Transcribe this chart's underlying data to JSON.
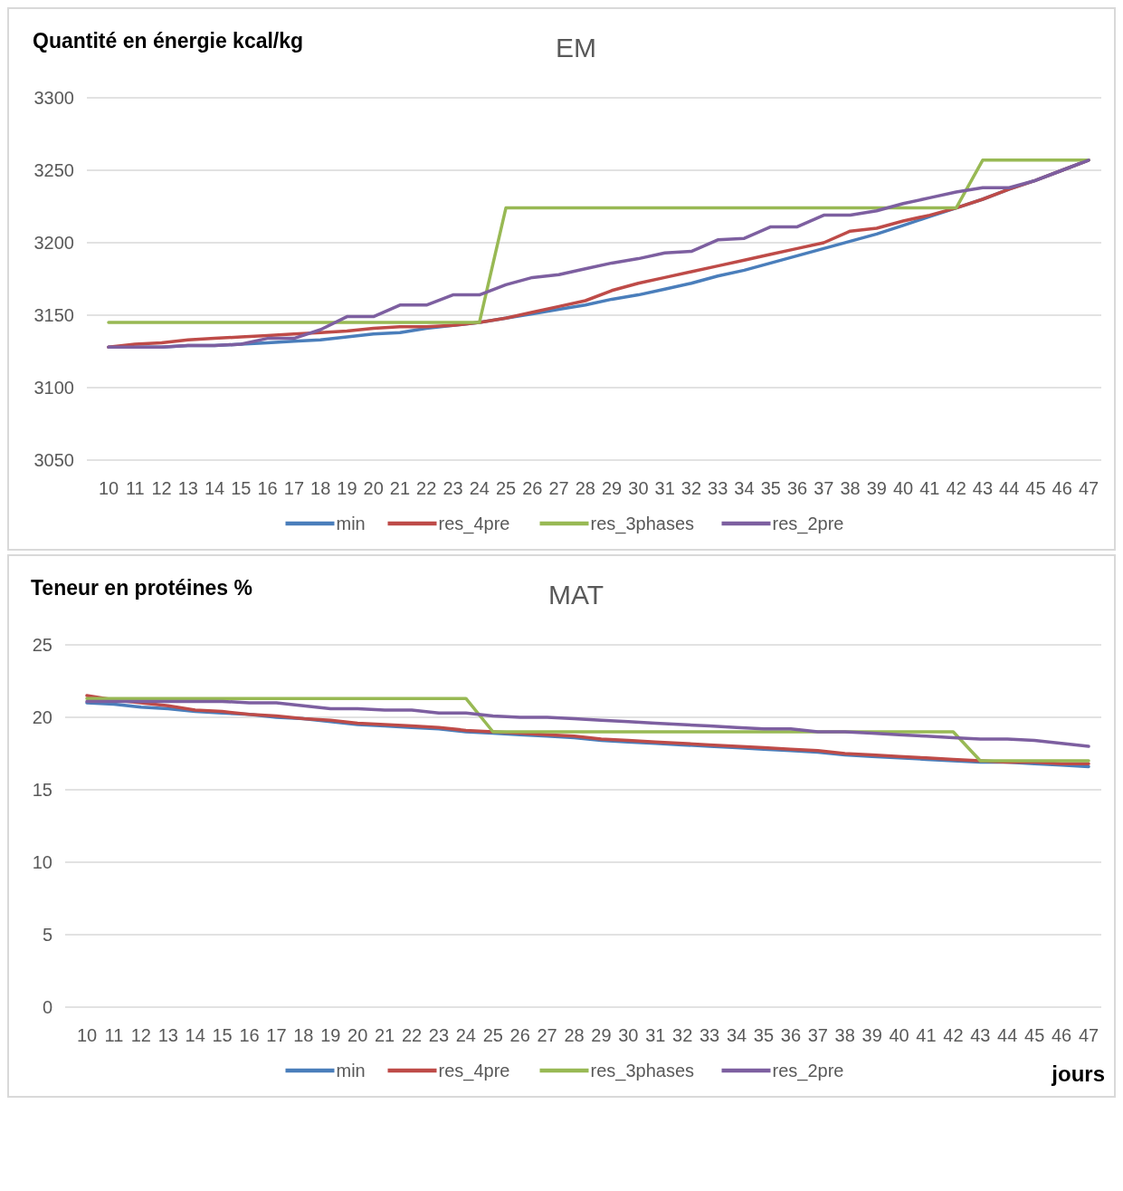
{
  "chart_data": [
    {
      "type": "line",
      "title": "EM",
      "ylabel": "Quantité en énergie kcal/kg",
      "categories": [
        "10",
        "11",
        "12",
        "13",
        "14",
        "15",
        "16",
        "17",
        "18",
        "19",
        "20",
        "21",
        "22",
        "23",
        "24",
        "25",
        "26",
        "27",
        "28",
        "29",
        "30",
        "31",
        "32",
        "33",
        "34",
        "35",
        "36",
        "37",
        "38",
        "39",
        "40",
        "41",
        "42",
        "43",
        "44",
        "45",
        "46",
        "47"
      ],
      "ylim": [
        3050,
        3300
      ],
      "yticks": [
        3050,
        3100,
        3150,
        3200,
        3250,
        3300
      ],
      "grid": "y",
      "legend": "bottom",
      "marker": "none",
      "line_style": "solid",
      "series": [
        {
          "name": "min",
          "color": "#4a7ebb",
          "values": [
            3128,
            3128,
            3128,
            3129,
            3129,
            3130,
            3131,
            3132,
            3133,
            3135,
            3137,
            3138,
            3141,
            3143,
            3145,
            3148,
            3151,
            3154,
            3157,
            3161,
            3164,
            3168,
            3172,
            3177,
            3181,
            3186,
            3191,
            3196,
            3201,
            3206,
            3212,
            3218,
            3224,
            3230,
            3237,
            3243,
            3250,
            3257
          ]
        },
        {
          "name": "res_4pre",
          "color": "#be4b48",
          "values": [
            3128,
            3130,
            3131,
            3133,
            3134,
            3135,
            3136,
            3137,
            3138,
            3139,
            3141,
            3142,
            3142,
            3143,
            3145,
            3148,
            3152,
            3156,
            3160,
            3167,
            3172,
            3176,
            3180,
            3184,
            3188,
            3192,
            3196,
            3200,
            3208,
            3210,
            3215,
            3219,
            3224,
            3230,
            3237,
            3243,
            3250,
            3257
          ]
        },
        {
          "name": "res_3phases",
          "color": "#98b954",
          "values": [
            3145,
            3145,
            3145,
            3145,
            3145,
            3145,
            3145,
            3145,
            3145,
            3145,
            3145,
            3145,
            3145,
            3145,
            3145,
            3224,
            3224,
            3224,
            3224,
            3224,
            3224,
            3224,
            3224,
            3224,
            3224,
            3224,
            3224,
            3224,
            3224,
            3224,
            3224,
            3224,
            3224,
            3257,
            3257,
            3257,
            3257,
            3257
          ]
        },
        {
          "name": "res_2pre",
          "color": "#7d5fa0",
          "values": [
            3128,
            3128,
            3128,
            3129,
            3129,
            3130,
            3134,
            3134,
            3140,
            3149,
            3149,
            3157,
            3157,
            3164,
            3164,
            3171,
            3176,
            3178,
            3182,
            3186,
            3189,
            3193,
            3194,
            3202,
            3203,
            3211,
            3211,
            3219,
            3219,
            3222,
            3227,
            3231,
            3235,
            3238,
            3238,
            3243,
            3250,
            3257
          ]
        }
      ]
    },
    {
      "type": "line",
      "title": "MAT",
      "ylabel": "Teneur en protéines %",
      "xlabel": "jours",
      "categories": [
        "10",
        "11",
        "12",
        "13",
        "14",
        "15",
        "16",
        "17",
        "18",
        "19",
        "20",
        "21",
        "22",
        "23",
        "24",
        "25",
        "26",
        "27",
        "28",
        "29",
        "30",
        "31",
        "32",
        "33",
        "34",
        "35",
        "36",
        "37",
        "38",
        "39",
        "40",
        "41",
        "42",
        "43",
        "44",
        "45",
        "46",
        "47"
      ],
      "ylim": [
        0,
        25
      ],
      "yticks": [
        0,
        5,
        10,
        15,
        20,
        25
      ],
      "grid": "y",
      "legend": "bottom",
      "marker": "none",
      "line_style": "solid",
      "series": [
        {
          "name": "min",
          "color": "#4a7ebb",
          "values": [
            21.0,
            20.9,
            20.7,
            20.6,
            20.4,
            20.3,
            20.2,
            20.0,
            19.9,
            19.7,
            19.5,
            19.4,
            19.3,
            19.2,
            19.0,
            18.9,
            18.8,
            18.7,
            18.6,
            18.4,
            18.3,
            18.2,
            18.1,
            18.0,
            17.9,
            17.8,
            17.7,
            17.6,
            17.4,
            17.3,
            17.2,
            17.1,
            17.0,
            16.9,
            16.9,
            16.8,
            16.7,
            16.6
          ]
        },
        {
          "name": "res_4pre",
          "color": "#be4b48",
          "values": [
            21.5,
            21.2,
            21.0,
            20.8,
            20.5,
            20.4,
            20.2,
            20.1,
            19.9,
            19.8,
            19.6,
            19.5,
            19.4,
            19.3,
            19.1,
            19.0,
            18.9,
            18.8,
            18.7,
            18.5,
            18.4,
            18.3,
            18.2,
            18.1,
            18.0,
            17.9,
            17.8,
            17.7,
            17.5,
            17.4,
            17.3,
            17.2,
            17.1,
            17.0,
            16.9,
            16.9,
            16.8,
            16.8
          ]
        },
        {
          "name": "res_3phases",
          "color": "#98b954",
          "values": [
            21.3,
            21.3,
            21.3,
            21.3,
            21.3,
            21.3,
            21.3,
            21.3,
            21.3,
            21.3,
            21.3,
            21.3,
            21.3,
            21.3,
            21.3,
            19.0,
            19.0,
            19.0,
            19.0,
            19.0,
            19.0,
            19.0,
            19.0,
            19.0,
            19.0,
            19.0,
            19.0,
            19.0,
            19.0,
            19.0,
            19.0,
            19.0,
            19.0,
            17.0,
            17.0,
            17.0,
            17.0,
            17.0
          ]
        },
        {
          "name": "res_2pre",
          "color": "#7d5fa0",
          "values": [
            21.1,
            21.1,
            21.1,
            21.1,
            21.1,
            21.1,
            21.0,
            21.0,
            20.8,
            20.6,
            20.6,
            20.5,
            20.5,
            20.3,
            20.3,
            20.1,
            20.0,
            20.0,
            19.9,
            19.8,
            19.7,
            19.6,
            19.5,
            19.4,
            19.3,
            19.2,
            19.2,
            19.0,
            19.0,
            18.9,
            18.8,
            18.7,
            18.6,
            18.5,
            18.5,
            18.4,
            18.2,
            18.0
          ]
        }
      ]
    }
  ]
}
